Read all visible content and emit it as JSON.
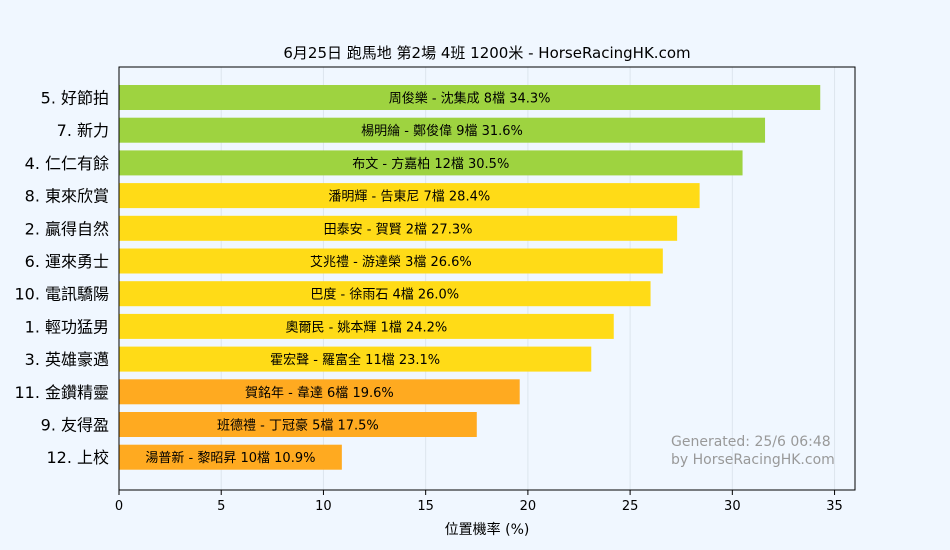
{
  "chart_data": {
    "type": "bar",
    "orientation": "horizontal",
    "title": "6月25日  跑馬地  第2場  4班  1200米 - HorseRacingHK.com",
    "xlabel": "位置機率 (%)",
    "ylabel": "",
    "xlim": [
      0,
      36
    ],
    "xticks": [
      "0",
      "5",
      "10",
      "15",
      "20",
      "25",
      "30",
      "35"
    ],
    "grid": "vertical",
    "categories": [
      "5. 好節拍",
      "7. 新力",
      "4. 仁仁有餘",
      "8. 東來欣賞",
      "2. 贏得自然",
      "6. 運來勇士",
      "10. 電訊驕陽",
      "1. 輕功猛男",
      "3. 英雄豪邁",
      "11. 金鑽精靈",
      "9. 友得盈",
      "12. 上校"
    ],
    "values": [
      34.3,
      31.6,
      30.5,
      28.4,
      27.3,
      26.6,
      26.0,
      24.2,
      23.1,
      19.6,
      17.5,
      10.9
    ],
    "bar_labels": [
      "周俊樂 - 沈集成 8檔  34.3%",
      "楊明綸 - 鄭俊偉 9檔  31.6%",
      "布文 - 方嘉柏 12檔  30.5%",
      "潘明輝 - 告東尼 7檔  28.4%",
      "田泰安 - 賀賢 2檔  27.3%",
      "艾兆禮 - 游達榮 3檔  26.6%",
      "巴度 - 徐雨石 4檔  26.0%",
      "奧爾民 - 姚本輝 1檔  24.2%",
      "霍宏聲 - 羅富全 11檔  23.1%",
      "賀銘年 - 韋達 6檔  19.6%",
      "班德禮 - 丁冠豪 5檔  17.5%",
      "湯普新 - 黎昭昇 10檔  10.9%"
    ],
    "tiers": [
      "green",
      "green",
      "green",
      "yellow",
      "yellow",
      "yellow",
      "yellow",
      "yellow",
      "yellow",
      "orange",
      "orange",
      "orange"
    ],
    "colors": {
      "green": "#9ed340",
      "yellow": "#ffdb17",
      "orange": "#ffaa20",
      "plot_bg": "#f0f7ff",
      "grid": "#dde6ee",
      "watermark": "#999999"
    },
    "watermark": [
      "Generated: 25/6 06:48",
      "by HorseRacingHK.com"
    ]
  }
}
